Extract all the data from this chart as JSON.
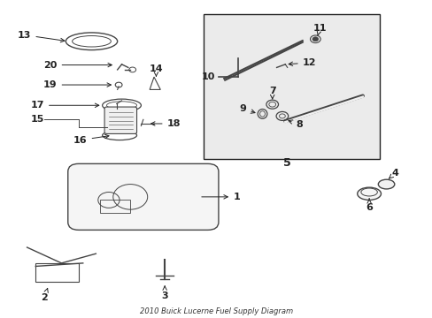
{
  "title": "2010 Buick Lucerne Fuel Supply Diagram",
  "bg_color": "#ffffff",
  "box_fill": "#e8e8e8",
  "label_fontsize": 8,
  "grey": "#444444",
  "dark": "#222222"
}
